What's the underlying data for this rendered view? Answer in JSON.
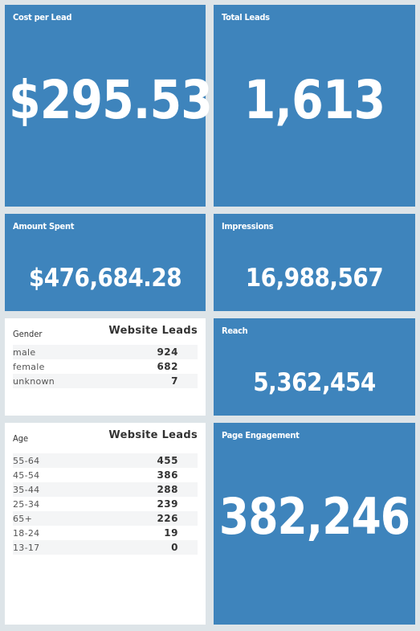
{
  "tiles": {
    "cost_per_lead": {
      "title": "Cost per Lead",
      "value": "$295.53"
    },
    "total_leads": {
      "title": "Total Leads",
      "value": "1,613"
    },
    "amount_spent": {
      "title": "Amount Spent",
      "value": "$476,684.28"
    },
    "impressions": {
      "title": "Impressions",
      "value": "16,988,567"
    },
    "reach": {
      "title": "Reach",
      "value": "5,362,454"
    },
    "page_engagement": {
      "title": "Page Engagement",
      "value": "382,246"
    }
  },
  "gender_table": {
    "col1": "Gender",
    "col2": "Website Leads",
    "rows": [
      {
        "label": "male",
        "value": "924"
      },
      {
        "label": "female",
        "value": "682"
      },
      {
        "label": "unknown",
        "value": "7"
      }
    ]
  },
  "age_table": {
    "col1": "Age",
    "col2": "Website Leads",
    "rows": [
      {
        "label": "55-64",
        "value": "455"
      },
      {
        "label": "45-54",
        "value": "386"
      },
      {
        "label": "35-44",
        "value": "288"
      },
      {
        "label": "25-34",
        "value": "239"
      },
      {
        "label": "65+",
        "value": "226"
      },
      {
        "label": "18-24",
        "value": "19"
      },
      {
        "label": "13-17",
        "value": "0"
      }
    ]
  },
  "colors": {
    "tile": "#3e84bc",
    "background": "#dde4e8"
  }
}
